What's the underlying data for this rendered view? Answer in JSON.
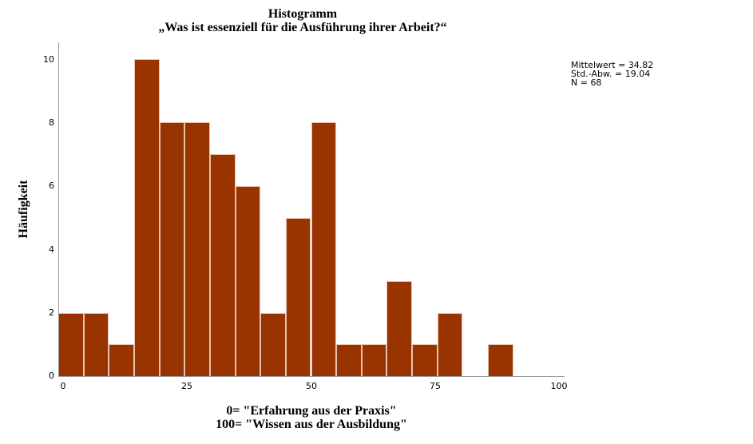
{
  "chart_data": {
    "type": "bar",
    "subtype": "histogram",
    "title": "Histogramm",
    "subtitle": "„Was ist essenziell für die Ausführung ihrer Arbeit?“",
    "xlabel_lines": [
      "0= \"Erfahrung aus der Praxis\"",
      "100= \"Wissen aus der Ausbildung\""
    ],
    "ylabel": "Häufigkeit",
    "bin_width": 5,
    "bins": [
      {
        "start": 0,
        "end": 5,
        "count": 2
      },
      {
        "start": 5,
        "end": 10,
        "count": 2
      },
      {
        "start": 10,
        "end": 15,
        "count": 1
      },
      {
        "start": 15,
        "end": 20,
        "count": 10
      },
      {
        "start": 20,
        "end": 25,
        "count": 8
      },
      {
        "start": 25,
        "end": 30,
        "count": 8
      },
      {
        "start": 30,
        "end": 35,
        "count": 7
      },
      {
        "start": 35,
        "end": 40,
        "count": 6
      },
      {
        "start": 40,
        "end": 45,
        "count": 2
      },
      {
        "start": 45,
        "end": 50,
        "count": 5
      },
      {
        "start": 50,
        "end": 55,
        "count": 8
      },
      {
        "start": 55,
        "end": 60,
        "count": 1
      },
      {
        "start": 60,
        "end": 65,
        "count": 1
      },
      {
        "start": 65,
        "end": 70,
        "count": 3
      },
      {
        "start": 70,
        "end": 75,
        "count": 1
      },
      {
        "start": 75,
        "end": 80,
        "count": 2
      },
      {
        "start": 80,
        "end": 85,
        "count": 0
      },
      {
        "start": 85,
        "end": 90,
        "count": 1
      },
      {
        "start": 90,
        "end": 95,
        "count": 0
      },
      {
        "start": 95,
        "end": 100,
        "count": 0
      }
    ],
    "xlim": [
      0,
      100
    ],
    "ylim": [
      0,
      10.5
    ],
    "xticks": [
      "0",
      "25",
      "50",
      "75",
      "100"
    ],
    "yticks": [
      "0",
      "2",
      "4",
      "6",
      "8",
      "10"
    ],
    "bar_color": "#993300",
    "grid": false,
    "stats": {
      "mean_label": "Mittelwert = 34.82",
      "sd_label": "Std.-Abw. = 19.04",
      "n_label": "N = 68"
    }
  }
}
